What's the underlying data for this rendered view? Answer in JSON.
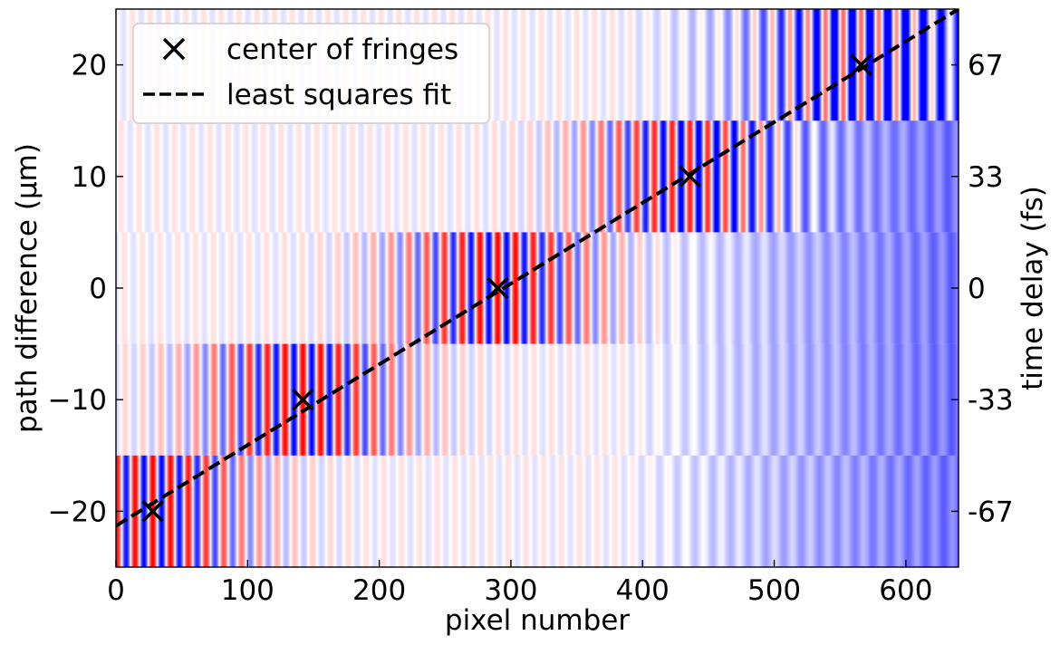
{
  "chart_data": {
    "type": "heatmap",
    "title": "",
    "xlabel": "pixel number",
    "ylabel": "path difference (μm)",
    "ylabel_right": "time delay (fs)",
    "xlim": [
      0,
      640
    ],
    "ylim": [
      -25,
      25
    ],
    "x_ticks": [
      0,
      100,
      200,
      300,
      400,
      500,
      600
    ],
    "y_ticks": [
      -20,
      -10,
      0,
      10,
      20
    ],
    "y_tick_labels": [
      "−20",
      "−10",
      "0",
      "10",
      "20"
    ],
    "right_ticks": [
      -20,
      -10,
      0,
      10,
      20
    ],
    "right_tick_labels": [
      "-67",
      "-33",
      "0",
      "33",
      "67"
    ],
    "colormap": {
      "negative": "#0000ff",
      "zero": "#ffffff",
      "positive": "#ff0000"
    },
    "bands": [
      {
        "path_difference": -20,
        "y_range": [
          -25,
          -15
        ],
        "fringe_center": 28
      },
      {
        "path_difference": -10,
        "y_range": [
          -15,
          -5
        ],
        "fringe_center": 142
      },
      {
        "path_difference": 0,
        "y_range": [
          -5,
          5
        ],
        "fringe_center": 290
      },
      {
        "path_difference": 10,
        "y_range": [
          5,
          15
        ],
        "fringe_center": 436
      },
      {
        "path_difference": 20,
        "y_range": [
          15,
          25
        ],
        "fringe_center": 566
      }
    ],
    "series": [
      {
        "name": "center of fringes",
        "kind": "scatter",
        "marker": "x",
        "color": "#000000",
        "points": [
          [
            28,
            -20
          ],
          [
            142,
            -10
          ],
          [
            290,
            0
          ],
          [
            436,
            10
          ],
          [
            566,
            20
          ]
        ]
      },
      {
        "name": "least squares fit",
        "kind": "line",
        "style": "dashed",
        "color": "#000000",
        "points": [
          [
            0,
            -21.3
          ],
          [
            640,
            25
          ]
        ]
      }
    ],
    "legend_position": "top-left",
    "grid": false
  }
}
